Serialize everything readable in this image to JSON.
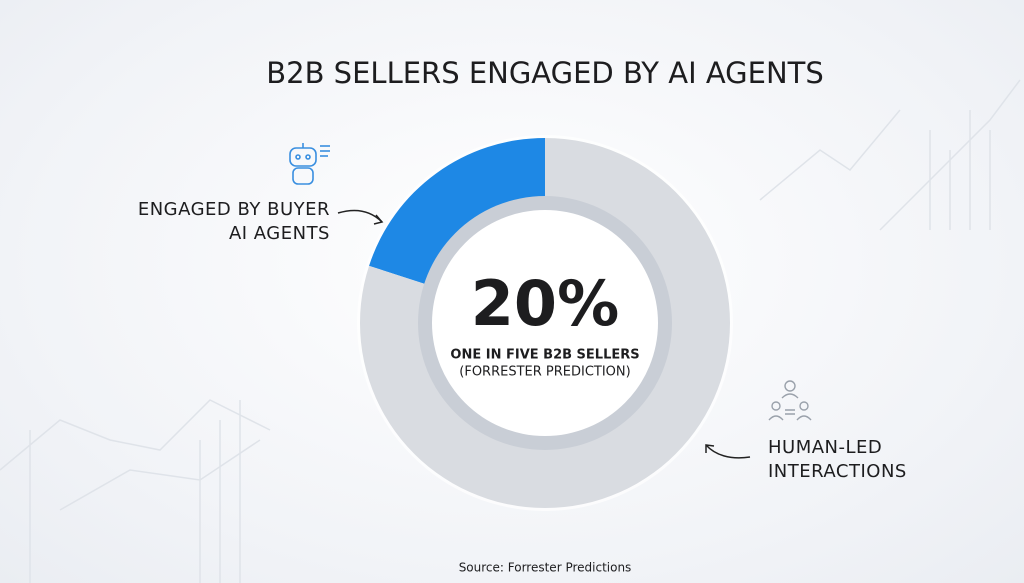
{
  "chart_data": {
    "type": "donut",
    "title": "B2B SELLERS ENGAGED BY AI AGENTS",
    "categories": [
      "ENGAGED BY BUYER AI AGENTS",
      "HUMAN-LED INTERACTIONS"
    ],
    "values": [
      20,
      80
    ],
    "value_labels": [
      "20%",
      null
    ],
    "colors": [
      "#1e88e5",
      "#d9dce1"
    ],
    "annotations": [
      "ONE IN FIVE B2B SELLERS",
      "(FORRESTER PREDICTION)"
    ],
    "source": "Source: Forrester Predictions"
  }
}
